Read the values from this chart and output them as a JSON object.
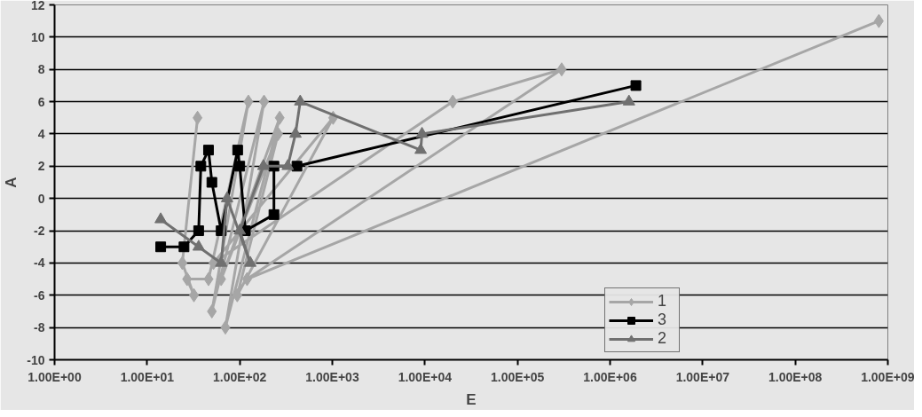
{
  "chart_data": {
    "type": "line",
    "xlabel": "E",
    "ylabel": "A",
    "log": "x",
    "grid": "y",
    "legend": "bottom right",
    "xlim": [
      1,
      1000000000
    ],
    "ylim": [
      -10,
      12
    ],
    "xticks": [
      {
        "value": 1,
        "label": "1.00E+00"
      },
      {
        "value": 10,
        "label": "1.00E+01"
      },
      {
        "value": 100,
        "label": "1.00E+02"
      },
      {
        "value": 1000,
        "label": "1.00E+03"
      },
      {
        "value": 10000,
        "label": "1.00E+04"
      },
      {
        "value": 100000,
        "label": "1.00E+05"
      },
      {
        "value": 1000000,
        "label": "1.00E+06"
      },
      {
        "value": 10000000,
        "label": "1.00E+07"
      },
      {
        "value": 100000000,
        "label": "1.00E+08"
      },
      {
        "value": 1000000000,
        "label": "1.00E+09"
      }
    ],
    "yticks": [
      -10,
      -8,
      -6,
      -4,
      -2,
      0,
      2,
      4,
      6,
      8,
      10,
      12
    ],
    "series": [
      {
        "name": "1",
        "color": "#a6a6a6",
        "marker": "diamond",
        "x": [
          35,
          24,
          32,
          27,
          46,
          124,
          50,
          183,
          70,
          270,
          63,
          260,
          94,
          1020,
          52,
          20000,
          300000,
          120,
          800000000
        ],
        "values": [
          5,
          -4,
          -6,
          -5,
          -5,
          6,
          -7,
          6,
          -8,
          5,
          -5,
          4,
          -6,
          5,
          -4,
          6,
          8,
          -5,
          11
        ]
      },
      {
        "name": "3",
        "color": "#000000",
        "marker": "square",
        "x": [
          14,
          25,
          36,
          38,
          46,
          50,
          63,
          95,
          100,
          115,
          234,
          234,
          415,
          1900000
        ],
        "values": [
          -3,
          -3,
          -2,
          2,
          3,
          1,
          -2,
          3,
          2,
          -2,
          -1,
          2,
          2,
          7
        ]
      },
      {
        "name": "2",
        "color": "#707070",
        "marker": "triangle",
        "x": [
          14,
          36,
          63,
          73,
          130,
          100,
          180,
          330,
          400,
          450,
          9000,
          9300,
          1600000
        ],
        "values": [
          -1.3,
          -3,
          -4,
          0,
          -4,
          -2,
          2,
          2,
          4,
          6,
          3,
          4,
          6
        ]
      }
    ]
  }
}
